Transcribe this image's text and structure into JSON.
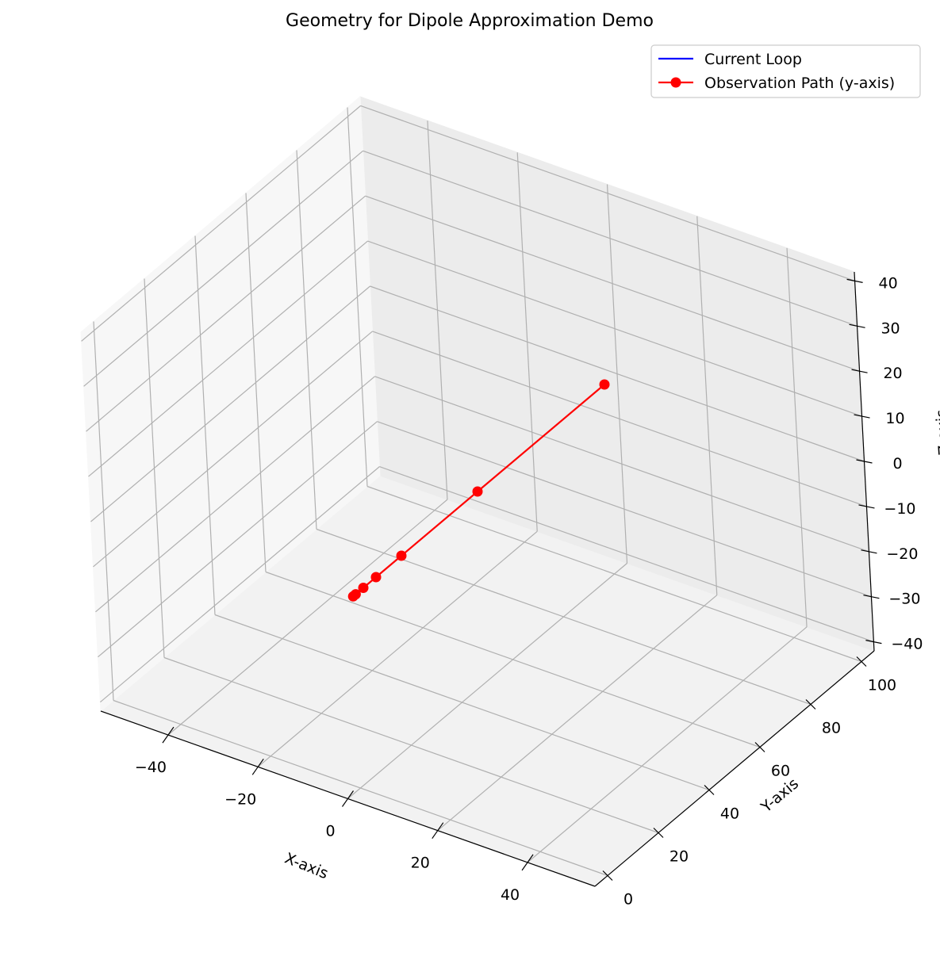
{
  "chart_data": {
    "type": "line3d",
    "title": "Geometry for Dipole Approximation Demo",
    "xlabel": "X-axis",
    "ylabel": "Y-axis",
    "zlabel": "Z-axis",
    "xlim": [
      -55,
      55
    ],
    "ylim": [
      -5,
      105
    ],
    "zlim": [
      -42,
      42
    ],
    "x_ticks": [
      -40,
      -20,
      0,
      20,
      40
    ],
    "y_ticks": [
      0,
      20,
      40,
      60,
      80,
      100
    ],
    "z_ticks": [
      -40,
      -30,
      -20,
      -10,
      0,
      10,
      20,
      30,
      40
    ],
    "grid": true,
    "legend_position": "top-right",
    "series": [
      {
        "name": "Current Loop",
        "color": "#0000ff",
        "marker": "none",
        "points": []
      },
      {
        "name": "Observation Path (y-axis)",
        "color": "#ff0000",
        "marker": "circle",
        "points": [
          {
            "x": 0,
            "y": 1,
            "z": 0
          },
          {
            "x": 0,
            "y": 2,
            "z": 0
          },
          {
            "x": 0,
            "y": 5,
            "z": 0
          },
          {
            "x": 0,
            "y": 10,
            "z": 0
          },
          {
            "x": 0,
            "y": 20,
            "z": 0
          },
          {
            "x": 0,
            "y": 50,
            "z": 0
          },
          {
            "x": 0,
            "y": 100,
            "z": 0
          }
        ]
      }
    ]
  }
}
